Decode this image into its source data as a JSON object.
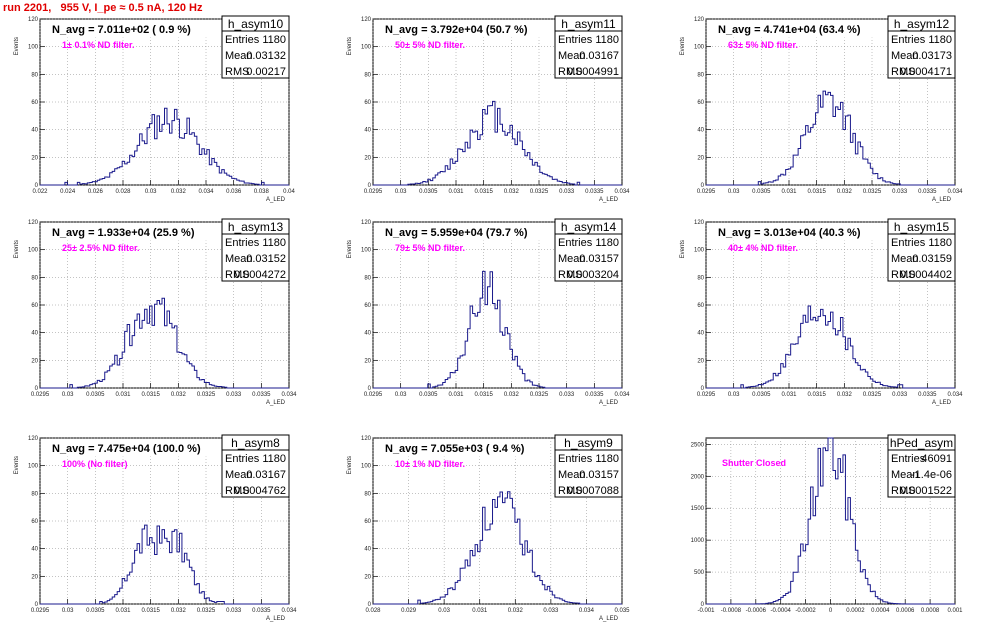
{
  "page_title": "run 2201,   955 V, I_pe ≈ 0.5 nA, 120 Hz",
  "chart_data": [
    {
      "type": "histogram",
      "name": "h_asym10",
      "xlabel": "A_LED",
      "ylabel": "Events",
      "title": "N_avg = 7.011e+02 ( 0.9 %)",
      "label": "1± 0.1% ND filter.",
      "stats": [
        {
          "k": "Entries",
          "v": "1180"
        },
        {
          "k": "Mean",
          "v": "0.03132"
        },
        {
          "k": "RMS",
          "v": "0.00217"
        }
      ],
      "xlim": [
        0.022,
        0.04
      ],
      "ylim": [
        0,
        120
      ],
      "xticks": [
        "0.022",
        "0.024",
        "0.026",
        "0.028",
        "0.03",
        "0.032",
        "0.034",
        "0.036",
        "0.038",
        "0.04"
      ],
      "yticks": [
        "0",
        "20",
        "40",
        "60",
        "80",
        "100",
        "120"
      ],
      "mean": 0.03132,
      "rms": 0.00217,
      "entries": 1180,
      "peak": 48,
      "seed": 11
    },
    {
      "type": "histogram",
      "name": "h_asym11",
      "xlabel": "A_LED",
      "ylabel": "Events",
      "title": "N_avg = 3.792e+04 (50.7 %)",
      "label": "50± 5% ND filter.",
      "stats": [
        {
          "k": "Entries",
          "v": "1180"
        },
        {
          "k": "Mean",
          "v": "0.03167"
        },
        {
          "k": "RMS",
          "v": "0.0004991"
        }
      ],
      "xlim": [
        0.0295,
        0.034
      ],
      "ylim": [
        0,
        120
      ],
      "xticks": [
        "0.0295",
        "0.03",
        "0.0305",
        "0.031",
        "0.0315",
        "0.032",
        "0.0325",
        "0.033",
        "0.0335",
        "0.034"
      ],
      "yticks": [
        "0",
        "20",
        "40",
        "60",
        "80",
        "100",
        "120"
      ],
      "mean": 0.03167,
      "rms": 0.0004991,
      "entries": 1180,
      "peak": 50,
      "seed": 12
    },
    {
      "type": "histogram",
      "name": "h_asym12",
      "xlabel": "A_LED",
      "ylabel": "Events",
      "title": "N_avg = 4.741e+04 (63.4 %)",
      "label": "63± 5% ND filter.",
      "stats": [
        {
          "k": "Entries",
          "v": "1180"
        },
        {
          "k": "Mean",
          "v": "0.03173"
        },
        {
          "k": "RMS",
          "v": "0.0004171"
        }
      ],
      "xlim": [
        0.0295,
        0.034
      ],
      "ylim": [
        0,
        120
      ],
      "xticks": [
        "0.0295",
        "0.03",
        "0.0305",
        "0.031",
        "0.0315",
        "0.032",
        "0.0325",
        "0.033",
        "0.0335",
        "0.034"
      ],
      "yticks": [
        "0",
        "20",
        "40",
        "60",
        "80",
        "100",
        "120"
      ],
      "mean": 0.03173,
      "rms": 0.0004171,
      "entries": 1180,
      "peak": 60,
      "seed": 13
    },
    {
      "type": "histogram",
      "name": "h_asym13",
      "xlabel": "A_LED",
      "ylabel": "Events",
      "title": "N_avg = 1.933e+04 (25.9 %)",
      "label": "25± 2.5% ND filter.",
      "stats": [
        {
          "k": "Entries",
          "v": "1180"
        },
        {
          "k": "Mean",
          "v": "0.03152"
        },
        {
          "k": "RMS",
          "v": "0.0004272"
        }
      ],
      "xlim": [
        0.0295,
        0.034
      ],
      "ylim": [
        0,
        120
      ],
      "xticks": [
        "0.0295",
        "0.03",
        "0.0305",
        "0.031",
        "0.0315",
        "0.032",
        "0.0325",
        "0.033",
        "0.0335",
        "0.034"
      ],
      "yticks": [
        "0",
        "20",
        "40",
        "60",
        "80",
        "100",
        "120"
      ],
      "mean": 0.03152,
      "rms": 0.0004272,
      "entries": 1180,
      "peak": 60,
      "seed": 14
    },
    {
      "type": "histogram",
      "name": "h_asym14",
      "xlabel": "A_LED",
      "ylabel": "Events",
      "title": "N_avg = 5.959e+04 (79.7 %)",
      "label": "79± 5% ND filter.",
      "stats": [
        {
          "k": "Entries",
          "v": "1180"
        },
        {
          "k": "Mean",
          "v": "0.03157"
        },
        {
          "k": "RMS",
          "v": "0.0003204"
        }
      ],
      "xlim": [
        0.0295,
        0.034
      ],
      "ylim": [
        0,
        120
      ],
      "xticks": [
        "0.0295",
        "0.03",
        "0.0305",
        "0.031",
        "0.0315",
        "0.032",
        "0.0325",
        "0.033",
        "0.0335",
        "0.034"
      ],
      "yticks": [
        "0",
        "20",
        "40",
        "60",
        "80",
        "100",
        "120"
      ],
      "mean": 0.03157,
      "rms": 0.0003204,
      "entries": 1180,
      "peak": 72,
      "seed": 15
    },
    {
      "type": "histogram",
      "name": "h_asym15",
      "xlabel": "A_LED",
      "ylabel": "Events",
      "title": "N_avg = 3.013e+04 (40.3 %)",
      "label": "40± 4% ND filter.",
      "stats": [
        {
          "k": "Entries",
          "v": "1180"
        },
        {
          "k": "Mean",
          "v": "0.03159"
        },
        {
          "k": "RMS",
          "v": "0.0004402"
        }
      ],
      "xlim": [
        0.0295,
        0.034
      ],
      "ylim": [
        0,
        120
      ],
      "xticks": [
        "0.0295",
        "0.03",
        "0.0305",
        "0.031",
        "0.0315",
        "0.032",
        "0.0325",
        "0.033",
        "0.0335",
        "0.034"
      ],
      "yticks": [
        "0",
        "20",
        "40",
        "60",
        "80",
        "100",
        "120"
      ],
      "mean": 0.03159,
      "rms": 0.0004402,
      "entries": 1180,
      "peak": 58,
      "seed": 16
    },
    {
      "type": "histogram",
      "name": "h_asym8",
      "xlabel": "A_LED",
      "ylabel": "Events",
      "title": "N_avg = 7.475e+04 (100.0 %)",
      "label": "100% (No filter)",
      "stats": [
        {
          "k": "Entries",
          "v": "1180"
        },
        {
          "k": "Mean",
          "v": "0.03167"
        },
        {
          "k": "RMS",
          "v": "0.0004762"
        }
      ],
      "xlim": [
        0.0295,
        0.034
      ],
      "ylim": [
        0,
        120
      ],
      "xticks": [
        "0.0295",
        "0.03",
        "0.0305",
        "0.031",
        "0.0315",
        "0.032",
        "0.0325",
        "0.033",
        "0.0335",
        "0.034"
      ],
      "yticks": [
        "0",
        "20",
        "40",
        "60",
        "80",
        "100",
        "120"
      ],
      "mean": 0.03167,
      "rms": 0.0004762,
      "entries": 1180,
      "peak": 46,
      "seed": 17,
      "bimodal": true
    },
    {
      "type": "histogram",
      "name": "h_asym9",
      "xlabel": "A_LED",
      "ylabel": "Events",
      "title": "N_avg = 7.055e+03 ( 9.4 %)",
      "label": "10± 1% ND filter.",
      "stats": [
        {
          "k": "Entries",
          "v": "1180"
        },
        {
          "k": "Mean",
          "v": "0.03157"
        },
        {
          "k": "RMS",
          "v": "0.0007088"
        }
      ],
      "xlim": [
        0.028,
        0.035
      ],
      "ylim": [
        0,
        120
      ],
      "xticks": [
        "0.028",
        "0.029",
        "0.03",
        "0.031",
        "0.032",
        "0.033",
        "0.034",
        "0.035"
      ],
      "yticks": [
        "0",
        "20",
        "40",
        "60",
        "80",
        "100",
        "120"
      ],
      "mean": 0.03157,
      "rms": 0.0007088,
      "entries": 1180,
      "peak": 70,
      "seed": 18
    },
    {
      "type": "histogram",
      "name": "hPed_asym",
      "xlabel": "",
      "ylabel": "",
      "title": "",
      "label": "Shutter Closed",
      "stats": [
        {
          "k": "Entries",
          "v": "46091"
        },
        {
          "k": "Mean",
          "v": "-1.4e-06"
        },
        {
          "k": "RMS",
          "v": "0.0001522"
        }
      ],
      "xlim": [
        -0.001,
        0.001
      ],
      "ylim": [
        0,
        2600
      ],
      "xticks": [
        "-0.001",
        "-0.0008",
        "-0.0006",
        "-0.0004",
        "-0.0002",
        "0",
        "0.0002",
        "0.0004",
        "0.0006",
        "0.0008",
        "0.001"
      ],
      "yticks": [
        "0",
        "500",
        "1000",
        "1500",
        "2000",
        "2500"
      ],
      "mean": -1.4e-06,
      "rms": 0.0001522,
      "entries": 46091,
      "peak": 2450,
      "seed": 19
    }
  ]
}
